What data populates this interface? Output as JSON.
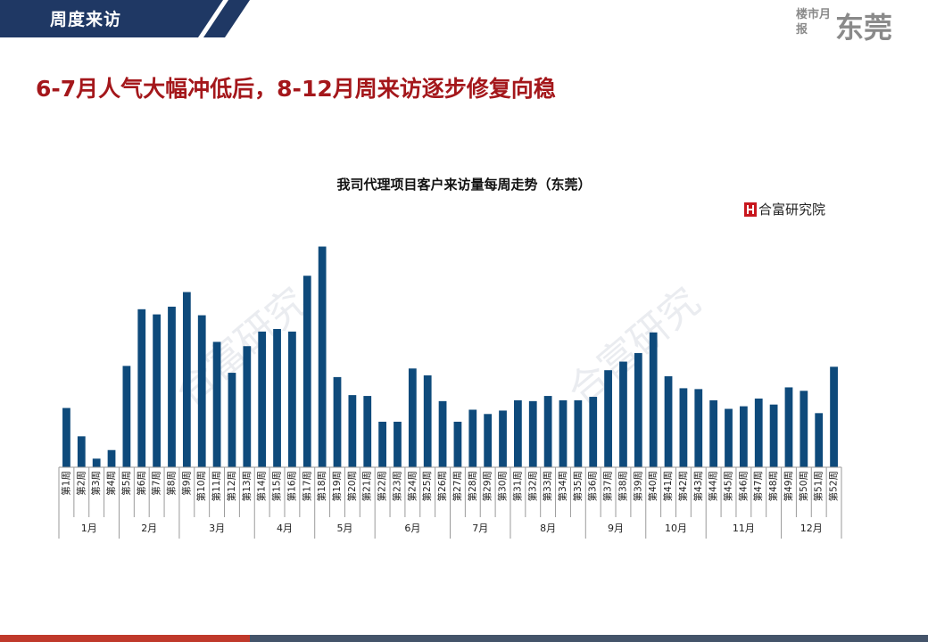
{
  "header": {
    "tab_title": "周度来访",
    "brand_small": "楼市月报",
    "brand_big": "东莞"
  },
  "headline": "6-7月人气大幅冲低后，8-12月周来访逐步修复向稳",
  "legend": {
    "label": "合富研究院"
  },
  "watermark": "合富研究",
  "colors": {
    "bar": "#0e4a7b",
    "headline": "#a4171b",
    "tab": "#1f3864",
    "legend_mark": "#c8161d"
  },
  "chart_data": {
    "type": "bar",
    "title": "我司代理项目客户来访量每周走势（东莞）",
    "xlabel": "",
    "ylabel": "",
    "categories": [
      "第1周",
      "第2周",
      "第3周",
      "第4周",
      "第5周",
      "第6周",
      "第7周",
      "第8周",
      "第9周",
      "第10周",
      "第11周",
      "第12周",
      "第13周",
      "第14周",
      "第15周",
      "第16周",
      "第17周",
      "第18周",
      "第19周",
      "第20周",
      "第21周",
      "第22周",
      "第23周",
      "第24周",
      "第25周",
      "第26周",
      "第27周",
      "第28周",
      "第29周",
      "第30周",
      "第31周",
      "第32周",
      "第33周",
      "第34周",
      "第35周",
      "第36周",
      "第37周",
      "第38周",
      "第39周",
      "第40周",
      "第41周",
      "第42周",
      "第43周",
      "第44周",
      "第45周",
      "第46周",
      "第47周",
      "第48周",
      "第49周",
      "第50周",
      "第51周",
      "第52周"
    ],
    "values": [
      69,
      36,
      10,
      20,
      118,
      184,
      178,
      187,
      204,
      177,
      146,
      110,
      141,
      158,
      161,
      158,
      223,
      257,
      105,
      84,
      83,
      53,
      53,
      115,
      107,
      77,
      53,
      67,
      62,
      66,
      78,
      77,
      83,
      78,
      78,
      82,
      113,
      123,
      133,
      157,
      106,
      92,
      91,
      78,
      68,
      71,
      80,
      73,
      93,
      89,
      63,
      117
    ],
    "ylim": [
      0,
      270
    ],
    "months": [
      {
        "label": "1月",
        "count": 4
      },
      {
        "label": "2月",
        "count": 4
      },
      {
        "label": "3月",
        "count": 5
      },
      {
        "label": "4月",
        "count": 4
      },
      {
        "label": "5月",
        "count": 4
      },
      {
        "label": "6月",
        "count": 5
      },
      {
        "label": "7月",
        "count": 4
      },
      {
        "label": "8月",
        "count": 5
      },
      {
        "label": "9月",
        "count": 4
      },
      {
        "label": "10月",
        "count": 4
      },
      {
        "label": "11月",
        "count": 5
      },
      {
        "label": "12月",
        "count": 4
      }
    ],
    "grid": false,
    "legend_position": "top-right"
  }
}
